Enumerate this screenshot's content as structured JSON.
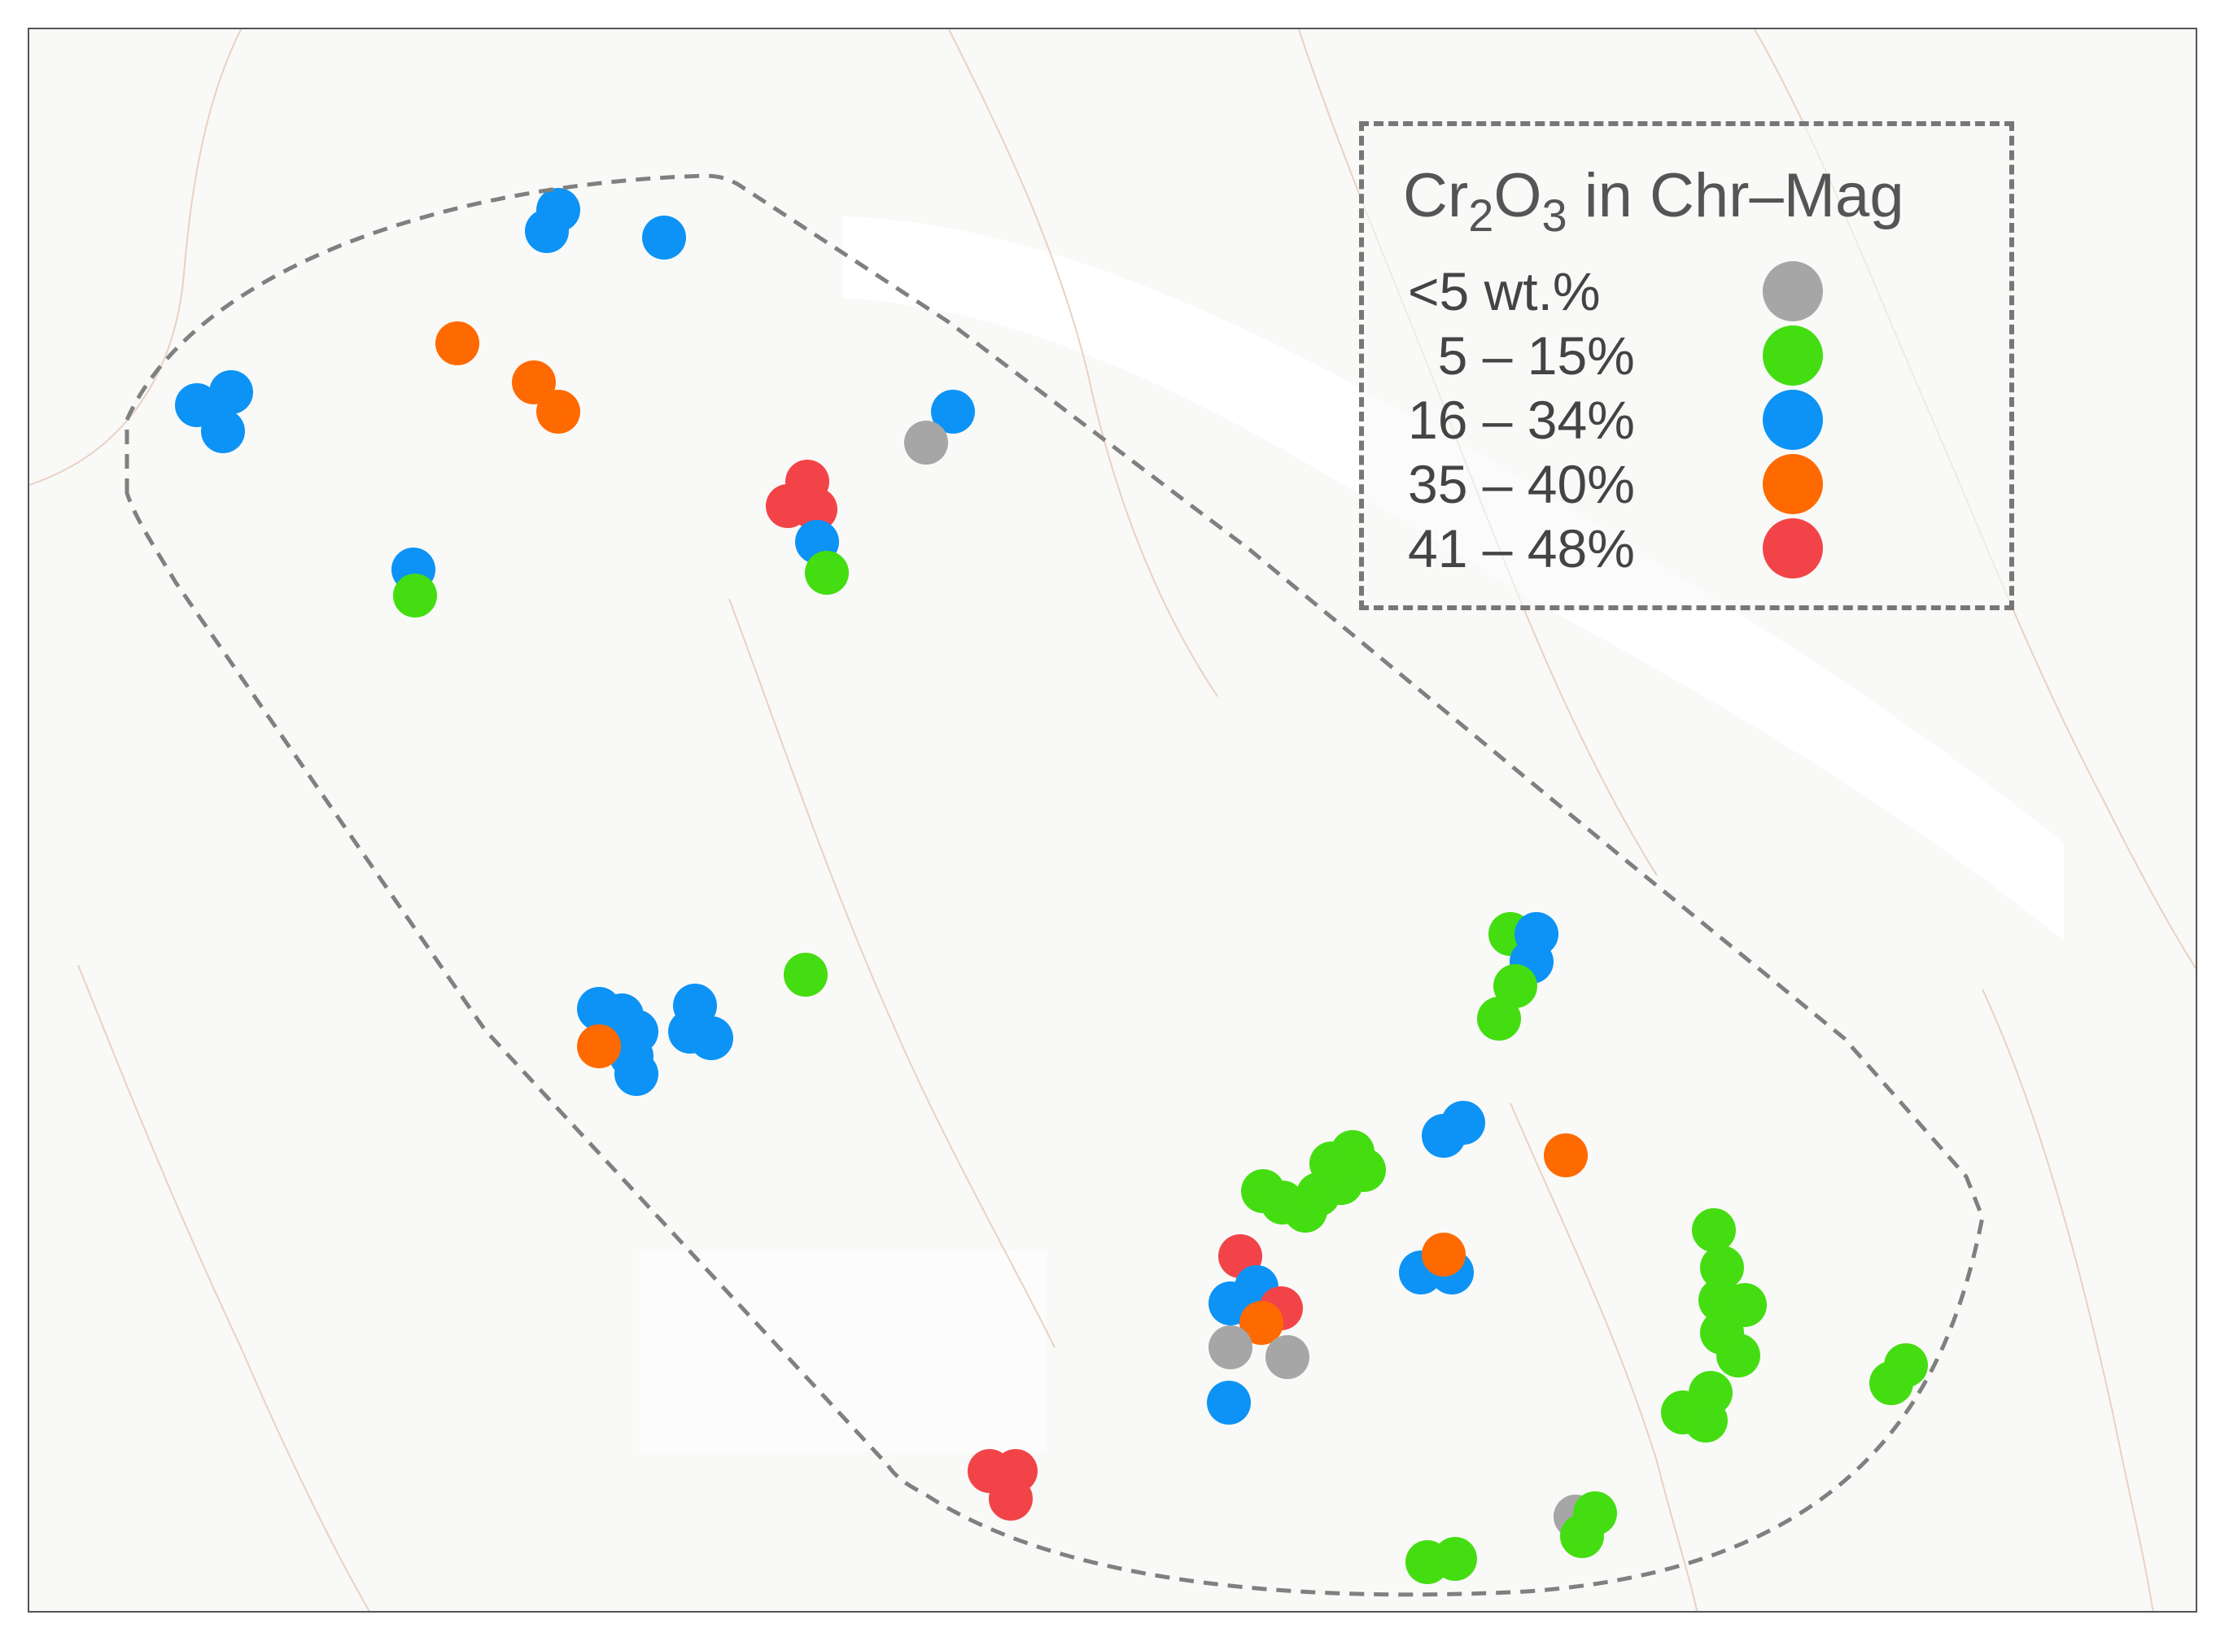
{
  "legend": {
    "title_main": "Cr",
    "title_sub1": "2",
    "title_mid": "O",
    "title_sub2": "3",
    "title_tail": "  in Chr–Mag",
    "classes": [
      {
        "label": "<5 wt.%",
        "color": "#a6a6a6"
      },
      {
        "label": "  5 – 15%",
        "color": "#44dd11"
      },
      {
        "label": "16 – 34%",
        "color": "#0c93f5"
      },
      {
        "label": "35 – 40%",
        "color": "#ff6a00"
      },
      {
        "label": "41 – 48%",
        "color": "#f24448"
      }
    ]
  },
  "colors": {
    "boundary": "#808080",
    "contour": "#e9d2c2",
    "background": "#f9f9f8"
  }
}
